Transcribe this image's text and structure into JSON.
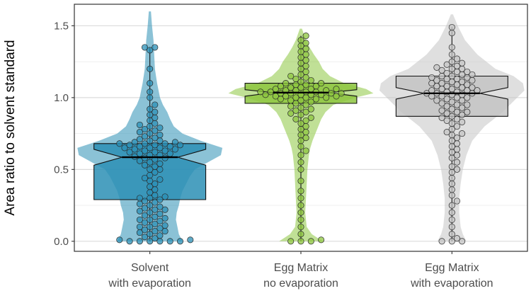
{
  "chart_data": {
    "type": "box-violin-beeswarm",
    "ylabel": "Area ratio to solvent standard",
    "xlabel": "",
    "ylim": [
      -0.07,
      1.65
    ],
    "yticks": [
      0.0,
      0.5,
      1.0,
      1.5
    ],
    "ytick_labels": [
      "0.0",
      "0.5",
      "1.0",
      "1.5"
    ],
    "grid": true,
    "notched": true,
    "categories": [
      {
        "line1": "Solvent",
        "line2": "with evaporation"
      },
      {
        "line1": "Egg Matrix",
        "line2": "no evaporation"
      },
      {
        "line1": "Egg Matrix",
        "line2": "with evaporation"
      }
    ],
    "groups": [
      {
        "color": "#2b8fb5",
        "q1": 0.29,
        "median": 0.585,
        "q3": 0.68,
        "notch": [
          0.53,
          0.64
        ],
        "whisker_low": 0.0,
        "whisker_high": 1.35,
        "violin_max": 1.6,
        "violin_density": [
          [
            0.0,
            0.45
          ],
          [
            0.05,
            0.4
          ],
          [
            0.1,
            0.38
          ],
          [
            0.15,
            0.36
          ],
          [
            0.2,
            0.37
          ],
          [
            0.25,
            0.4
          ],
          [
            0.3,
            0.42
          ],
          [
            0.35,
            0.45
          ],
          [
            0.4,
            0.5
          ],
          [
            0.45,
            0.55
          ],
          [
            0.5,
            0.62
          ],
          [
            0.55,
            0.8
          ],
          [
            0.6,
            0.98
          ],
          [
            0.65,
            1.0
          ],
          [
            0.7,
            0.7
          ],
          [
            0.75,
            0.45
          ],
          [
            0.8,
            0.33
          ],
          [
            0.85,
            0.28
          ],
          [
            0.9,
            0.24
          ],
          [
            0.95,
            0.18
          ],
          [
            1.0,
            0.14
          ],
          [
            1.1,
            0.1
          ],
          [
            1.2,
            0.07
          ],
          [
            1.3,
            0.06
          ],
          [
            1.4,
            0.05
          ],
          [
            1.5,
            0.03
          ],
          [
            1.6,
            0.0
          ]
        ],
        "points_y": [
          0.0,
          0.0,
          0.0,
          0.0,
          0.0,
          0.0,
          0.01,
          0.01,
          0.02,
          0.03,
          0.04,
          0.05,
          0.06,
          0.07,
          0.07,
          0.08,
          0.09,
          0.1,
          0.1,
          0.11,
          0.12,
          0.13,
          0.14,
          0.15,
          0.15,
          0.16,
          0.17,
          0.18,
          0.19,
          0.2,
          0.21,
          0.22,
          0.22,
          0.23,
          0.24,
          0.25,
          0.26,
          0.27,
          0.28,
          0.29,
          0.3,
          0.3,
          0.31,
          0.32,
          0.34,
          0.36,
          0.38,
          0.4,
          0.42,
          0.43,
          0.44,
          0.46,
          0.48,
          0.5,
          0.5,
          0.52,
          0.53,
          0.54,
          0.55,
          0.56,
          0.57,
          0.58,
          0.58,
          0.59,
          0.6,
          0.6,
          0.61,
          0.61,
          0.62,
          0.62,
          0.63,
          0.63,
          0.64,
          0.64,
          0.65,
          0.65,
          0.65,
          0.66,
          0.66,
          0.67,
          0.67,
          0.67,
          0.68,
          0.68,
          0.68,
          0.69,
          0.69,
          0.7,
          0.7,
          0.71,
          0.72,
          0.73,
          0.74,
          0.75,
          0.76,
          0.77,
          0.78,
          0.79,
          0.8,
          0.81,
          0.82,
          0.84,
          0.86,
          0.88,
          0.9,
          0.92,
          0.95,
          1.0,
          1.04,
          1.1,
          1.2,
          1.33,
          1.35,
          1.35
        ]
      },
      {
        "color": "#8dc63f",
        "q1": 0.96,
        "median": 1.035,
        "q3": 1.1,
        "notch": [
          1.01,
          1.055
        ],
        "whisker_low": 0.0,
        "whisker_high": 1.43,
        "violin_max": 1.48,
        "violin_density": [
          [
            0.0,
            0.3
          ],
          [
            0.05,
            0.15
          ],
          [
            0.1,
            0.08
          ],
          [
            0.2,
            0.06
          ],
          [
            0.3,
            0.07
          ],
          [
            0.4,
            0.08
          ],
          [
            0.5,
            0.09
          ],
          [
            0.6,
            0.11
          ],
          [
            0.65,
            0.13
          ],
          [
            0.7,
            0.16
          ],
          [
            0.75,
            0.2
          ],
          [
            0.8,
            0.24
          ],
          [
            0.85,
            0.28
          ],
          [
            0.9,
            0.34
          ],
          [
            0.95,
            0.45
          ],
          [
            1.0,
            0.75
          ],
          [
            1.03,
            1.0
          ],
          [
            1.06,
            0.9
          ],
          [
            1.1,
            0.6
          ],
          [
            1.15,
            0.4
          ],
          [
            1.2,
            0.3
          ],
          [
            1.25,
            0.25
          ],
          [
            1.3,
            0.18
          ],
          [
            1.35,
            0.12
          ],
          [
            1.4,
            0.07
          ],
          [
            1.48,
            0.0
          ]
        ],
        "points_y": [
          0.0,
          0.0,
          0.0,
          0.01,
          0.05,
          0.1,
          0.15,
          0.2,
          0.25,
          0.3,
          0.35,
          0.42,
          0.5,
          0.55,
          0.6,
          0.63,
          0.66,
          0.7,
          0.72,
          0.74,
          0.76,
          0.78,
          0.8,
          0.82,
          0.84,
          0.85,
          0.86,
          0.88,
          0.89,
          0.9,
          0.91,
          0.92,
          0.93,
          0.94,
          0.95,
          0.96,
          0.97,
          0.98,
          0.98,
          0.99,
          0.99,
          1.0,
          1.0,
          1.0,
          1.01,
          1.01,
          1.01,
          1.02,
          1.02,
          1.02,
          1.02,
          1.03,
          1.03,
          1.03,
          1.03,
          1.04,
          1.04,
          1.04,
          1.04,
          1.05,
          1.05,
          1.05,
          1.06,
          1.06,
          1.06,
          1.07,
          1.07,
          1.08,
          1.08,
          1.09,
          1.09,
          1.1,
          1.1,
          1.11,
          1.12,
          1.13,
          1.14,
          1.15,
          1.16,
          1.18,
          1.2,
          1.22,
          1.24,
          1.26,
          1.28,
          1.3,
          1.32,
          1.34,
          1.36,
          1.38,
          1.4,
          1.43
        ]
      },
      {
        "color": "#c4c4c4",
        "q1": 0.87,
        "median": 1.03,
        "q3": 1.15,
        "notch": [
          0.99,
          1.07
        ],
        "whisker_low": 0.0,
        "whisker_high": 1.49,
        "violin_max": 1.58,
        "violin_density": [
          [
            0.0,
            0.2
          ],
          [
            0.05,
            0.15
          ],
          [
            0.1,
            0.12
          ],
          [
            0.2,
            0.1
          ],
          [
            0.3,
            0.1
          ],
          [
            0.4,
            0.12
          ],
          [
            0.5,
            0.15
          ],
          [
            0.6,
            0.2
          ],
          [
            0.7,
            0.28
          ],
          [
            0.8,
            0.45
          ],
          [
            0.9,
            0.7
          ],
          [
            1.0,
            0.9
          ],
          [
            1.05,
            1.0
          ],
          [
            1.1,
            0.98
          ],
          [
            1.15,
            0.85
          ],
          [
            1.2,
            0.6
          ],
          [
            1.3,
            0.35
          ],
          [
            1.4,
            0.18
          ],
          [
            1.5,
            0.08
          ],
          [
            1.58,
            0.0
          ]
        ],
        "points_y": [
          0.0,
          0.0,
          0.0,
          0.02,
          0.05,
          0.1,
          0.15,
          0.2,
          0.25,
          0.28,
          0.32,
          0.36,
          0.4,
          0.44,
          0.48,
          0.5,
          0.52,
          0.55,
          0.58,
          0.6,
          0.62,
          0.64,
          0.66,
          0.68,
          0.7,
          0.72,
          0.74,
          0.75,
          0.76,
          0.78,
          0.8,
          0.82,
          0.83,
          0.84,
          0.85,
          0.86,
          0.87,
          0.88,
          0.89,
          0.9,
          0.9,
          0.91,
          0.92,
          0.93,
          0.94,
          0.95,
          0.95,
          0.96,
          0.97,
          0.98,
          0.98,
          0.99,
          1.0,
          1.0,
          1.01,
          1.01,
          1.02,
          1.02,
          1.03,
          1.03,
          1.03,
          1.04,
          1.04,
          1.05,
          1.05,
          1.05,
          1.06,
          1.06,
          1.07,
          1.07,
          1.08,
          1.08,
          1.09,
          1.09,
          1.1,
          1.1,
          1.11,
          1.11,
          1.12,
          1.12,
          1.13,
          1.13,
          1.14,
          1.14,
          1.15,
          1.15,
          1.16,
          1.16,
          1.17,
          1.18,
          1.18,
          1.19,
          1.2,
          1.2,
          1.21,
          1.22,
          1.23,
          1.24,
          1.25,
          1.27,
          1.3,
          1.35,
          1.45,
          1.49
        ]
      }
    ]
  }
}
